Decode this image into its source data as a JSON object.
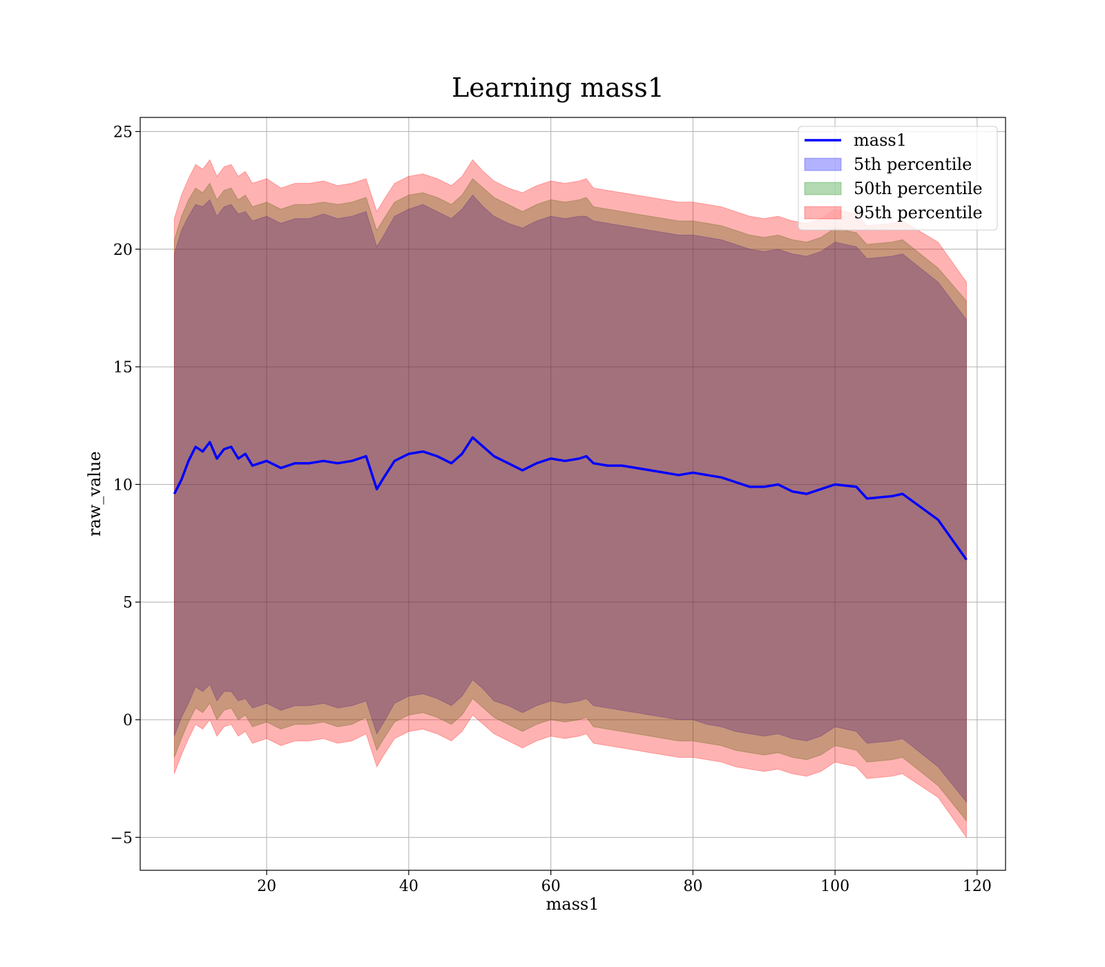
{
  "chart_data": {
    "type": "area",
    "title": "Learning mass1",
    "xlabel": "mass1",
    "ylabel": "raw_value",
    "xlim": [
      2.2,
      124
    ],
    "ylim": [
      -6.4,
      25.6
    ],
    "x_ticks": [
      20,
      40,
      60,
      80,
      100,
      120
    ],
    "y_ticks": [
      -5,
      0,
      5,
      10,
      15,
      20,
      25
    ],
    "y_tick_labels": [
      "−5",
      "0",
      "5",
      "10",
      "15",
      "20",
      "25"
    ],
    "grid": true,
    "legend_position": "top-right",
    "x": [
      7,
      8,
      9,
      10,
      11,
      12,
      13,
      14,
      15,
      16,
      17,
      18,
      19,
      20,
      22,
      24,
      26,
      28,
      30,
      32,
      34,
      35.5,
      36.5,
      38,
      40,
      42,
      44,
      46,
      47.5,
      49,
      50.5,
      52,
      54,
      56,
      58,
      60,
      62,
      64,
      65,
      66,
      68,
      70,
      72,
      74,
      76,
      78,
      80,
      82,
      84,
      86,
      88,
      90,
      92,
      94,
      96,
      98,
      100,
      103,
      104.5,
      108,
      109.5,
      114.5,
      118.5
    ],
    "series": [
      {
        "name": "mass1",
        "color": "#0000ff",
        "values": [
          9.6,
          10.2,
          11.0,
          11.6,
          11.4,
          11.8,
          11.1,
          11.5,
          11.6,
          11.1,
          11.3,
          10.8,
          10.9,
          11.0,
          10.7,
          10.9,
          10.9,
          11.0,
          10.9,
          11.0,
          11.2,
          9.8,
          10.3,
          11.0,
          11.3,
          11.4,
          11.2,
          10.9,
          11.3,
          12.0,
          11.6,
          11.2,
          10.9,
          10.6,
          10.9,
          11.1,
          11.0,
          11.1,
          11.2,
          10.9,
          10.8,
          10.8,
          10.7,
          10.6,
          10.5,
          10.4,
          10.5,
          10.4,
          10.3,
          10.1,
          9.9,
          9.9,
          10.0,
          9.7,
          9.6,
          9.8,
          10.0,
          9.9,
          9.4,
          9.5,
          9.6,
          8.5,
          6.8
        ]
      },
      {
        "name": "5th percentile",
        "color": "#0000ff",
        "upper": [
          19.8,
          20.8,
          21.4,
          21.9,
          21.8,
          22.1,
          21.4,
          21.8,
          21.9,
          21.5,
          21.6,
          21.2,
          21.3,
          21.4,
          21.1,
          21.3,
          21.3,
          21.5,
          21.3,
          21.4,
          21.6,
          20.1,
          20.6,
          21.4,
          21.7,
          21.9,
          21.6,
          21.3,
          21.7,
          22.3,
          21.8,
          21.4,
          21.1,
          20.9,
          21.2,
          21.4,
          21.3,
          21.4,
          21.4,
          21.2,
          21.1,
          21.0,
          20.9,
          20.8,
          20.7,
          20.6,
          20.6,
          20.5,
          20.4,
          20.2,
          20.0,
          19.9,
          20.0,
          19.8,
          19.7,
          19.9,
          20.3,
          20.1,
          19.6,
          19.7,
          19.8,
          18.6,
          17.0
        ],
        "lower": [
          -0.7,
          0.1,
          0.7,
          1.4,
          1.2,
          1.5,
          0.8,
          1.2,
          1.2,
          0.8,
          0.9,
          0.5,
          0.6,
          0.7,
          0.4,
          0.6,
          0.6,
          0.7,
          0.5,
          0.6,
          0.8,
          -0.6,
          -0.1,
          0.7,
          1.0,
          1.1,
          0.9,
          0.6,
          1.0,
          1.7,
          1.3,
          0.8,
          0.6,
          0.3,
          0.6,
          0.8,
          0.7,
          0.8,
          0.9,
          0.6,
          0.5,
          0.4,
          0.3,
          0.2,
          0.1,
          0.0,
          0.0,
          -0.2,
          -0.3,
          -0.5,
          -0.6,
          -0.7,
          -0.6,
          -0.8,
          -0.9,
          -0.7,
          -0.3,
          -0.5,
          -1.0,
          -0.9,
          -0.8,
          -2.0,
          -3.5
        ]
      },
      {
        "name": "50th percentile",
        "color": "#008000",
        "upper": [
          20.4,
          21.4,
          22.1,
          22.6,
          22.4,
          22.8,
          22.1,
          22.5,
          22.6,
          22.1,
          22.3,
          21.8,
          21.9,
          22.0,
          21.7,
          21.9,
          21.9,
          22.0,
          21.9,
          22.0,
          22.2,
          20.8,
          21.3,
          22.0,
          22.3,
          22.4,
          22.2,
          21.9,
          22.3,
          23.0,
          22.6,
          22.2,
          21.9,
          21.6,
          21.9,
          22.1,
          22.0,
          22.1,
          22.2,
          21.8,
          21.7,
          21.6,
          21.5,
          21.4,
          21.3,
          21.2,
          21.2,
          21.1,
          21.0,
          20.8,
          20.6,
          20.5,
          20.6,
          20.4,
          20.3,
          20.5,
          20.9,
          20.7,
          20.2,
          20.3,
          20.4,
          19.2,
          17.8
        ],
        "lower": [
          -1.6,
          -0.8,
          -0.1,
          0.5,
          0.3,
          0.7,
          0.0,
          0.4,
          0.5,
          0.0,
          0.2,
          -0.3,
          -0.2,
          -0.1,
          -0.4,
          -0.2,
          -0.2,
          -0.1,
          -0.3,
          -0.2,
          0.1,
          -1.3,
          -0.8,
          -0.1,
          0.2,
          0.3,
          0.1,
          -0.2,
          0.2,
          0.9,
          0.5,
          0.1,
          -0.2,
          -0.5,
          -0.2,
          0.0,
          -0.1,
          0.0,
          0.1,
          -0.3,
          -0.4,
          -0.5,
          -0.6,
          -0.7,
          -0.8,
          -0.9,
          -0.9,
          -1.0,
          -1.1,
          -1.3,
          -1.4,
          -1.5,
          -1.4,
          -1.6,
          -1.7,
          -1.5,
          -1.1,
          -1.3,
          -1.8,
          -1.7,
          -1.6,
          -2.8,
          -4.3
        ]
      },
      {
        "name": "95th percentile",
        "color": "#ff0000",
        "upper": [
          21.3,
          22.3,
          23.0,
          23.6,
          23.4,
          23.8,
          23.1,
          23.5,
          23.6,
          23.1,
          23.3,
          22.8,
          22.9,
          23.0,
          22.6,
          22.8,
          22.8,
          22.9,
          22.7,
          22.8,
          23.0,
          21.6,
          22.1,
          22.8,
          23.1,
          23.2,
          23.0,
          22.7,
          23.1,
          23.8,
          23.3,
          22.9,
          22.6,
          22.4,
          22.7,
          22.9,
          22.8,
          22.9,
          23.0,
          22.6,
          22.5,
          22.4,
          22.3,
          22.2,
          22.1,
          22.0,
          22.0,
          21.9,
          21.8,
          21.6,
          21.4,
          21.3,
          21.4,
          21.2,
          21.1,
          21.3,
          21.7,
          21.5,
          21.0,
          21.1,
          21.2,
          20.3,
          18.6
        ],
        "lower": [
          -2.3,
          -1.5,
          -0.8,
          -0.2,
          -0.4,
          0.0,
          -0.7,
          -0.3,
          -0.2,
          -0.7,
          -0.5,
          -1.0,
          -0.9,
          -0.8,
          -1.1,
          -0.9,
          -0.9,
          -0.8,
          -1.0,
          -0.9,
          -0.6,
          -2.0,
          -1.5,
          -0.8,
          -0.5,
          -0.4,
          -0.6,
          -0.9,
          -0.5,
          0.2,
          -0.2,
          -0.6,
          -0.9,
          -1.2,
          -0.9,
          -0.7,
          -0.8,
          -0.7,
          -0.6,
          -1.0,
          -1.1,
          -1.2,
          -1.3,
          -1.4,
          -1.5,
          -1.6,
          -1.6,
          -1.7,
          -1.8,
          -2.0,
          -2.1,
          -2.2,
          -2.1,
          -2.3,
          -2.4,
          -2.2,
          -1.8,
          -2.0,
          -2.5,
          -2.4,
          -2.3,
          -3.3,
          -5.0
        ]
      }
    ]
  }
}
